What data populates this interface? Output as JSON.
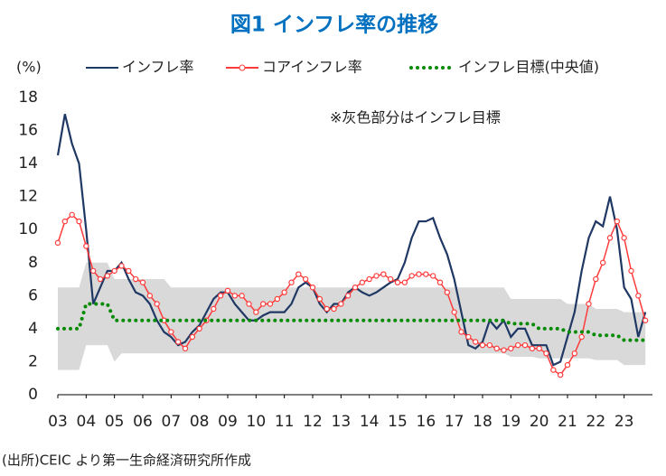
{
  "chart_data": {
    "type": "line",
    "title": "図1 インフレ率の推移",
    "y_label": "(%)",
    "annotation": "※灰色部分はインフレ目標",
    "source": "(出所)CEIC より第一生命経済研究所作成",
    "x": [
      2003,
      2003.25,
      2003.5,
      2003.75,
      2004,
      2004.25,
      2004.5,
      2004.75,
      2005,
      2005.25,
      2005.5,
      2005.75,
      2006,
      2006.25,
      2006.5,
      2006.75,
      2007,
      2007.25,
      2007.5,
      2007.75,
      2008,
      2008.25,
      2008.5,
      2008.75,
      2009,
      2009.25,
      2009.5,
      2009.75,
      2010,
      2010.25,
      2010.5,
      2010.75,
      2011,
      2011.25,
      2011.5,
      2011.75,
      2012,
      2012.25,
      2012.5,
      2012.75,
      2013,
      2013.25,
      2013.5,
      2013.75,
      2014,
      2014.25,
      2014.5,
      2014.75,
      2015,
      2015.25,
      2015.5,
      2015.75,
      2016,
      2016.25,
      2016.5,
      2016.75,
      2017,
      2017.25,
      2017.5,
      2017.75,
      2018,
      2018.25,
      2018.5,
      2018.75,
      2019,
      2019.25,
      2019.5,
      2019.75,
      2020,
      2020.25,
      2020.5,
      2020.75,
      2021,
      2021.25,
      2021.5,
      2021.75,
      2022,
      2022.25,
      2022.5,
      2022.75,
      2023,
      2023.25,
      2023.5,
      2023.75
    ],
    "series": [
      {
        "name": "インフレ率",
        "color": "#1f3864",
        "style": "solid",
        "values": [
          14.5,
          17.0,
          15.2,
          14.0,
          10.0,
          5.5,
          6.5,
          7.5,
          7.5,
          8.0,
          7.0,
          6.2,
          6.0,
          5.5,
          4.5,
          3.8,
          3.5,
          3.0,
          3.2,
          3.8,
          4.2,
          5.0,
          5.8,
          6.2,
          6.2,
          5.5,
          5.0,
          4.5,
          4.5,
          4.8,
          5.0,
          5.0,
          5.0,
          5.5,
          6.5,
          6.8,
          6.5,
          5.5,
          5.0,
          5.5,
          5.5,
          6.2,
          6.5,
          6.2,
          6.0,
          6.2,
          6.5,
          6.8,
          7.0,
          8.0,
          9.5,
          10.5,
          10.5,
          10.7,
          9.5,
          8.5,
          7.0,
          5.0,
          3.0,
          2.8,
          3.2,
          4.5,
          4.0,
          4.5,
          3.5,
          4.0,
          4.0,
          3.0,
          3.0,
          3.0,
          1.8,
          2.0,
          3.5,
          5.0,
          7.5,
          9.5,
          10.5,
          10.2,
          12.0,
          10.0,
          6.5,
          5.8,
          3.5,
          5.0
        ]
      },
      {
        "name": "コアインフレ率",
        "color": "#ff3b3b",
        "style": "marker",
        "values": [
          9.2,
          10.5,
          10.9,
          10.5,
          9.0,
          7.5,
          7.0,
          7.2,
          7.5,
          7.8,
          7.5,
          7.0,
          6.8,
          6.0,
          5.5,
          4.5,
          3.8,
          3.2,
          2.8,
          3.5,
          4.0,
          4.5,
          5.2,
          6.0,
          6.3,
          6.0,
          6.0,
          5.5,
          5.0,
          5.5,
          5.5,
          5.8,
          6.2,
          6.8,
          7.3,
          7.0,
          6.5,
          5.8,
          5.2,
          5.2,
          5.5,
          6.0,
          6.5,
          6.8,
          7.0,
          7.2,
          7.3,
          7.0,
          6.8,
          6.8,
          7.2,
          7.3,
          7.3,
          7.2,
          6.8,
          6.2,
          5.0,
          3.8,
          3.5,
          3.2,
          3.0,
          3.0,
          2.8,
          2.7,
          2.8,
          3.0,
          3.0,
          2.8,
          2.8,
          2.5,
          1.5,
          1.2,
          1.8,
          2.5,
          3.5,
          5.5,
          7.0,
          8.0,
          9.5,
          10.5,
          9.5,
          7.5,
          6.0,
          4.5
        ]
      },
      {
        "name": "インフレ目標(中央値)",
        "color": "#008a00",
        "style": "dotted",
        "values": [
          4,
          4,
          4,
          4,
          5.5,
          5.5,
          5.5,
          5.5,
          4.5,
          4.5,
          4.5,
          4.5,
          4.5,
          4.5,
          4.5,
          4.5,
          4.5,
          4.5,
          4.5,
          4.5,
          4.5,
          4.5,
          4.5,
          4.5,
          4.5,
          4.5,
          4.5,
          4.5,
          4.5,
          4.5,
          4.5,
          4.5,
          4.5,
          4.5,
          4.5,
          4.5,
          4.5,
          4.5,
          4.5,
          4.5,
          4.5,
          4.5,
          4.5,
          4.5,
          4.5,
          4.5,
          4.5,
          4.5,
          4.5,
          4.5,
          4.5,
          4.5,
          4.5,
          4.5,
          4.5,
          4.5,
          4.5,
          4.5,
          4.5,
          4.5,
          4.5,
          4.5,
          4.5,
          4.5,
          4.3,
          4.3,
          4.3,
          4.3,
          4.0,
          4.0,
          4.0,
          4.0,
          3.8,
          3.8,
          3.8,
          3.8,
          3.6,
          3.6,
          3.6,
          3.6,
          3.3,
          3.3,
          3.3,
          3.3
        ]
      }
    ],
    "target_band": {
      "color": "#d9d9d9",
      "lower": [
        1.5,
        1.5,
        1.5,
        1.5,
        3,
        3,
        3,
        3,
        2,
        2.5,
        2.5,
        2.5,
        2.5,
        2.5,
        2.5,
        2.5,
        2.5,
        2.5,
        2.5,
        2.5,
        2.5,
        2.5,
        2.5,
        2.5,
        2.5,
        2.5,
        2.5,
        2.5,
        2.5,
        2.5,
        2.5,
        2.5,
        2.5,
        2.5,
        2.5,
        2.5,
        2.5,
        2.5,
        2.5,
        2.5,
        2.5,
        2.5,
        2.5,
        2.5,
        2.5,
        2.5,
        2.5,
        2.5,
        2.5,
        2.5,
        2.5,
        2.5,
        2.5,
        2.5,
        2.5,
        2.5,
        2.5,
        2.5,
        2.5,
        2.5,
        2.5,
        2.5,
        2.5,
        2.5,
        2.3,
        2.3,
        2.3,
        2.3,
        2.2,
        2.2,
        2.2,
        2.2,
        2.2,
        2.2,
        2.2,
        2.2,
        2.1,
        2.1,
        2.1,
        2.1,
        1.8,
        1.8,
        1.8,
        1.8
      ],
      "upper": [
        6.5,
        6.5,
        6.5,
        6.5,
        8,
        8,
        8,
        8,
        7,
        7,
        7,
        7,
        7,
        7,
        7,
        7,
        6.5,
        6.5,
        6.5,
        6.5,
        6.5,
        6.5,
        6.5,
        6.5,
        6.5,
        6.5,
        6.5,
        6.5,
        6.5,
        6.5,
        6.5,
        6.5,
        6.5,
        6.5,
        6.5,
        6.5,
        6.5,
        6.5,
        6.5,
        6.5,
        6.5,
        6.5,
        6.5,
        6.5,
        6.5,
        6.5,
        6.5,
        6.5,
        6.5,
        6.5,
        6.5,
        6.5,
        6.5,
        6.5,
        6.5,
        6.5,
        6.5,
        6.5,
        6.5,
        6.5,
        6.5,
        6.5,
        6.5,
        6.5,
        5.8,
        5.8,
        5.8,
        5.8,
        5.8,
        5.8,
        5.8,
        5.8,
        5.5,
        5.5,
        5.5,
        5.5,
        5.2,
        5.2,
        5.2,
        5.2,
        5.0,
        5.0,
        5.0,
        5.0
      ]
    },
    "xlim": [
      2003,
      2024
    ],
    "xticks": [
      {
        "value": 2003,
        "label": "03"
      },
      {
        "value": 2004,
        "label": "04"
      },
      {
        "value": 2005,
        "label": "05"
      },
      {
        "value": 2006,
        "label": "06"
      },
      {
        "value": 2007,
        "label": "07"
      },
      {
        "value": 2008,
        "label": "08"
      },
      {
        "value": 2009,
        "label": "09"
      },
      {
        "value": 2010,
        "label": "10"
      },
      {
        "value": 2011,
        "label": "11"
      },
      {
        "value": 2012,
        "label": "12"
      },
      {
        "value": 2013,
        "label": "13"
      },
      {
        "value": 2014,
        "label": "14"
      },
      {
        "value": 2015,
        "label": "15"
      },
      {
        "value": 2016,
        "label": "16"
      },
      {
        "value": 2017,
        "label": "17"
      },
      {
        "value": 2018,
        "label": "18"
      },
      {
        "value": 2019,
        "label": "19"
      },
      {
        "value": 2020,
        "label": "20"
      },
      {
        "value": 2021,
        "label": "21"
      },
      {
        "value": 2022,
        "label": "22"
      },
      {
        "value": 2023,
        "label": "23"
      }
    ],
    "ylim": [
      0,
      18
    ],
    "yticks": [
      0,
      2,
      4,
      6,
      8,
      10,
      12,
      14,
      16,
      18
    ],
    "grid": false
  }
}
